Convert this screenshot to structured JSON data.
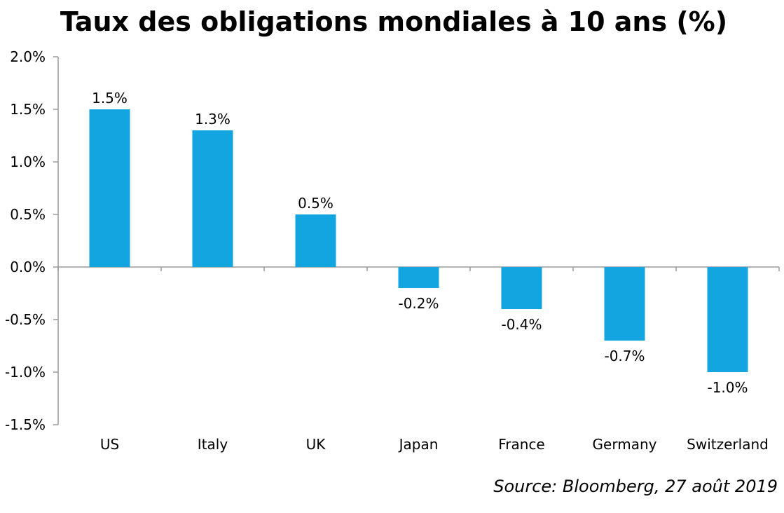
{
  "chart_data": {
    "type": "bar",
    "title": "Taux des obligations mondiales à 10 ans (%)",
    "source": "Source: Bloomberg, 27 août 2019",
    "categories": [
      "US",
      "Italy",
      "UK",
      "Japan",
      "France",
      "Germany",
      "Switzerland"
    ],
    "values": [
      1.5,
      1.3,
      0.5,
      -0.2,
      -0.4,
      -0.7,
      -1.0
    ],
    "data_labels": [
      "1.5%",
      "1.3%",
      "0.5%",
      "-0.2%",
      "-0.4%",
      "-0.7%",
      "-1.0%"
    ],
    "y_ticks": [
      2.0,
      1.5,
      1.0,
      0.5,
      0.0,
      -0.5,
      -1.0,
      -1.5
    ],
    "y_tick_labels": [
      "2.0%",
      "1.5%",
      "1.0%",
      "0.5%",
      "0.0%",
      "-0.5%",
      "-1.0%",
      "-1.5%"
    ],
    "ylim": [
      -1.5,
      2.0
    ],
    "xlabel": "",
    "ylabel": "",
    "grid": false,
    "legend": "none",
    "bar_color": "#13a5e0",
    "axis_color": "#9a9a9a"
  }
}
